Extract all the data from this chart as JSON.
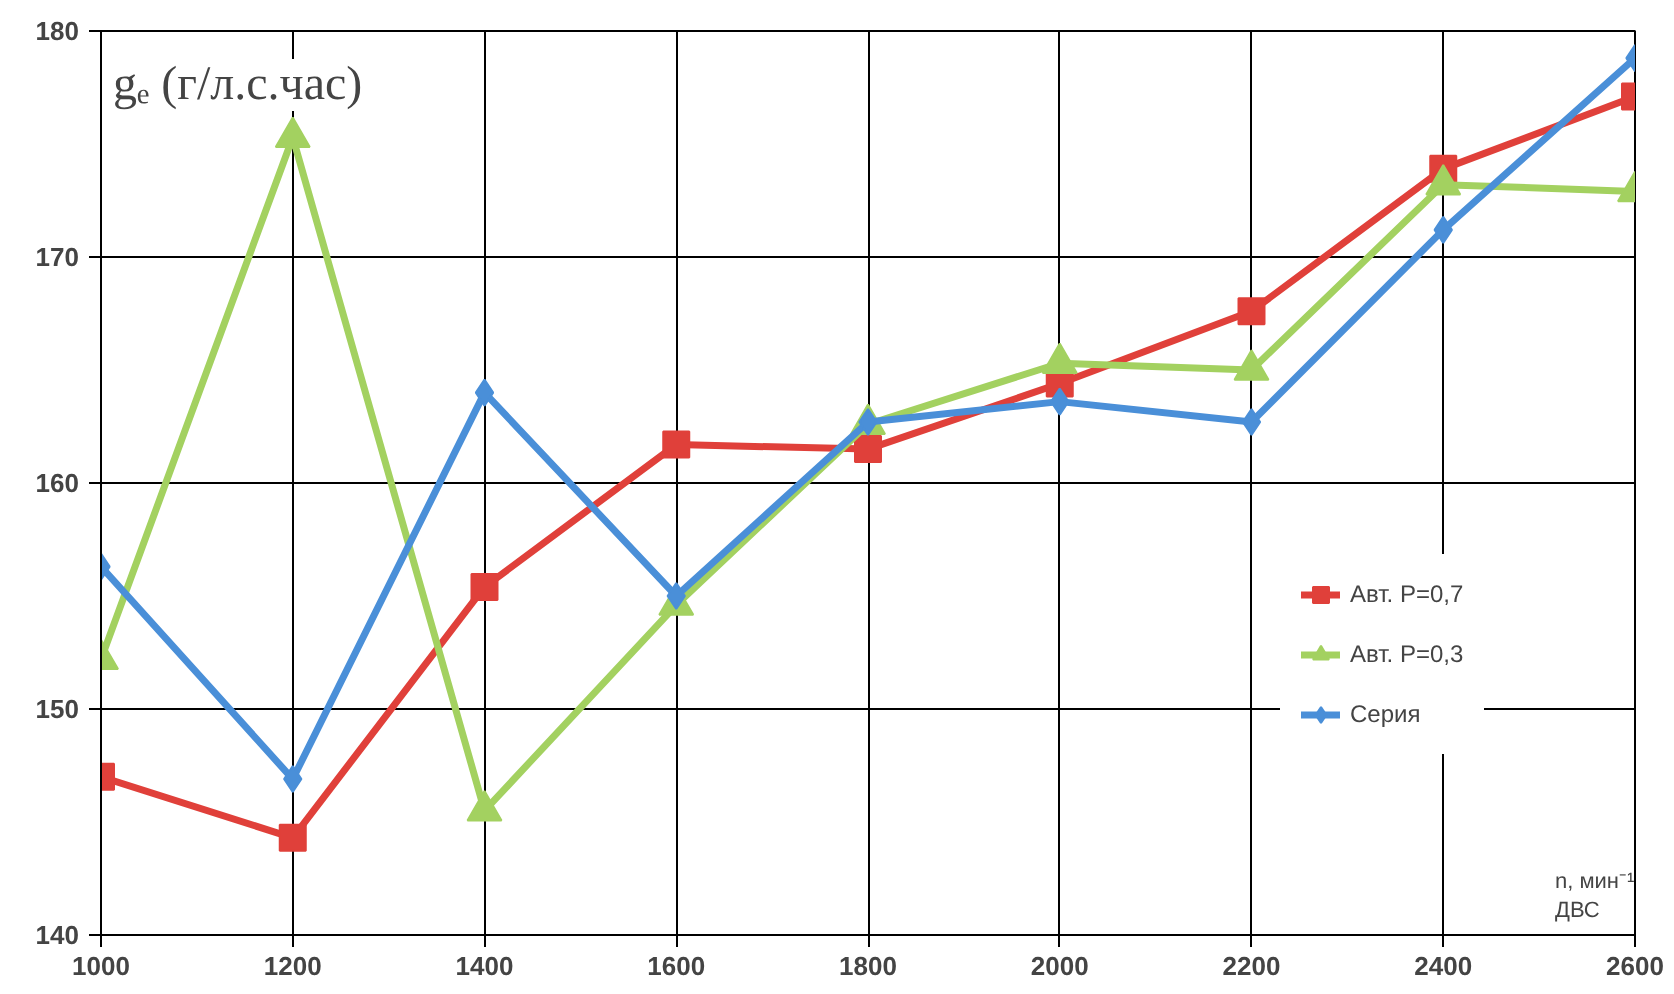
{
  "chart_data": {
    "type": "line",
    "title": "gₑ (г/л.с.час)",
    "x": [
      1000,
      1200,
      1400,
      1600,
      1800,
      2000,
      2200,
      2400,
      2600
    ],
    "series": [
      {
        "name": "Авт. P=0,7",
        "color": "#e0403a",
        "marker": "square",
        "values": [
          147.0,
          144.3,
          155.4,
          161.7,
          161.5,
          164.4,
          167.6,
          173.9,
          177.1
        ]
      },
      {
        "name": "Авт. P=0,3",
        "color": "#a3d160",
        "marker": "triangle",
        "values": [
          152.2,
          175.3,
          145.5,
          154.6,
          162.6,
          165.3,
          165.0,
          173.2,
          172.9
        ]
      },
      {
        "name": "Серия",
        "color": "#4a8fd8",
        "marker": "diamond",
        "values": [
          156.3,
          146.9,
          164.0,
          155.0,
          162.7,
          163.6,
          162.7,
          171.2,
          178.8
        ]
      }
    ],
    "xlim": [
      1000,
      2600
    ],
    "xticks": [
      1000,
      1200,
      1400,
      1600,
      1800,
      2000,
      2200,
      2400,
      2600
    ],
    "ylim": [
      140,
      180
    ],
    "yticks": [
      140,
      150,
      160,
      170,
      180
    ],
    "annotations": [
      "n, мин⁻¹\nДВС"
    ],
    "grid": true,
    "legend": "right",
    "line_style": "solid"
  }
}
